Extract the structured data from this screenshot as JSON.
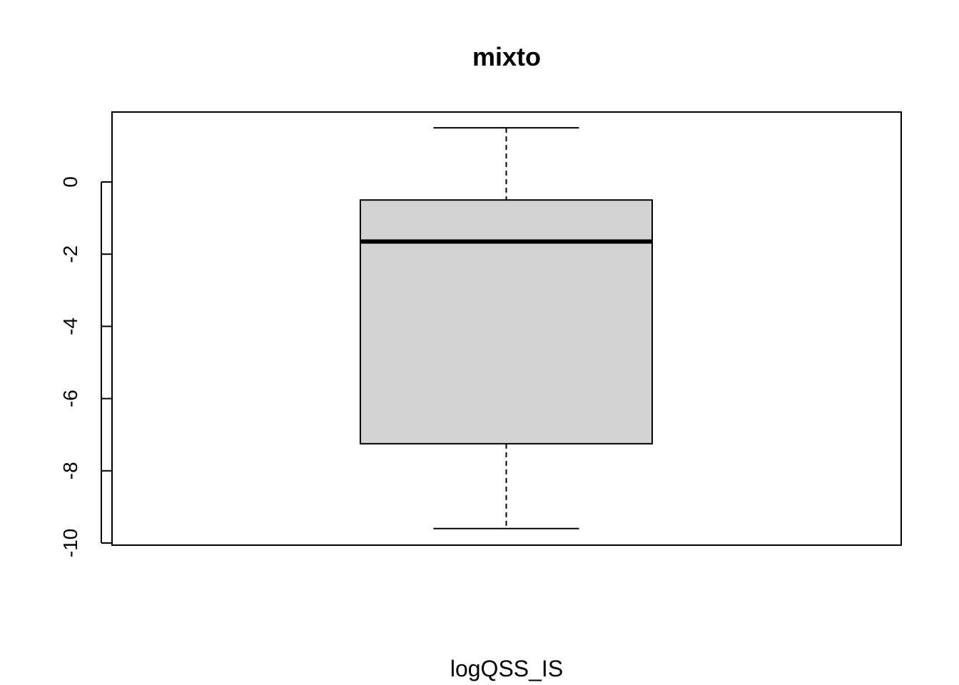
{
  "chart_data": {
    "type": "boxplot",
    "title": "mixto",
    "xlabel": "logQSS_IS",
    "ylabel": "",
    "ylim": [
      -10.0,
      1.9
    ],
    "yticks": [
      0,
      -2,
      -4,
      -6,
      -8,
      -10
    ],
    "ytick_labels": [
      "0",
      "-2",
      "-4",
      "-6",
      "-8",
      "-10"
    ],
    "grid": false,
    "box": {
      "whisker_low": -9.6,
      "q1": -7.25,
      "median": -1.65,
      "q3": -0.5,
      "whisker_high": 1.5
    },
    "colors": {
      "box_fill": "#d3d3d3",
      "line": "#000000",
      "background": "#ffffff"
    }
  }
}
